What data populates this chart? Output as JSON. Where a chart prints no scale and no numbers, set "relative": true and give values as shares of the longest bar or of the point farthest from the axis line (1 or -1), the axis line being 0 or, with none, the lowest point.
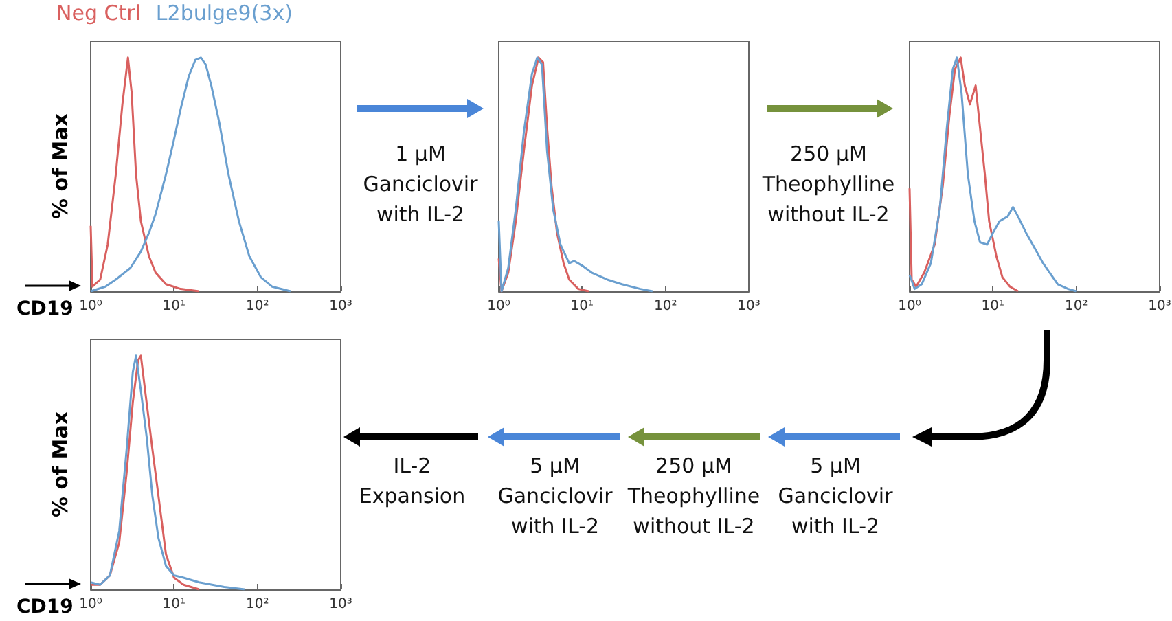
{
  "chart_data": [
    {
      "type": "line",
      "xlabel": "CD19",
      "ylabel": "% of Max",
      "relative": true,
      "log": "x",
      "legend": "top",
      "xlim": [
        1,
        1000
      ],
      "xticks": [
        {
          "value": 1,
          "label": "10⁰"
        },
        {
          "value": 10,
          "label": "10¹"
        },
        {
          "value": 100,
          "label": "10²"
        },
        {
          "value": 1000,
          "label": "10³"
        }
      ],
      "series": [
        {
          "name": "Neg Ctrl",
          "color": "#d9605f",
          "x": [
            1,
            1.05,
            1.3,
            1.6,
            2,
            2.4,
            2.8,
            3.1,
            3.5,
            4,
            5,
            6,
            8,
            12,
            20
          ],
          "values": [
            0.28,
            0.02,
            0.05,
            0.2,
            0.5,
            0.8,
            1,
            0.85,
            0.5,
            0.3,
            0.15,
            0.08,
            0.03,
            0.01,
            0
          ]
        },
        {
          "name": "L2bulge9(3x)",
          "color": "#6a9fcf",
          "x": [
            1,
            1.5,
            2,
            3,
            4,
            5,
            6,
            8,
            10,
            12,
            15,
            18,
            21,
            24,
            28,
            35,
            45,
            60,
            80,
            110,
            150,
            250
          ],
          "values": [
            0,
            0.02,
            0.05,
            0.1,
            0.17,
            0.25,
            0.33,
            0.5,
            0.65,
            0.78,
            0.92,
            0.99,
            1,
            0.97,
            0.88,
            0.72,
            0.5,
            0.3,
            0.15,
            0.06,
            0.02,
            0
          ]
        }
      ]
    },
    {
      "type": "line",
      "relative": true,
      "log": "x",
      "xlim": [
        1,
        1000
      ],
      "xticks": [
        {
          "value": 1,
          "label": "10⁰"
        },
        {
          "value": 10,
          "label": "10¹"
        },
        {
          "value": 100,
          "label": "10²"
        },
        {
          "value": 1000,
          "label": "10³"
        }
      ],
      "annotations": [
        "1 µM\nGanciclovir\nwith IL-2"
      ],
      "series": [
        {
          "color": "#d9605f",
          "x": [
            1,
            1.08,
            1.3,
            1.6,
            2,
            2.5,
            3,
            3.4,
            3.8,
            4.3,
            5,
            6,
            7,
            9,
            12
          ],
          "values": [
            0.14,
            0,
            0.08,
            0.3,
            0.6,
            0.88,
            1,
            0.98,
            0.7,
            0.45,
            0.25,
            0.12,
            0.05,
            0.01,
            0
          ]
        },
        {
          "color": "#6a9fcf",
          "x": [
            1,
            1.08,
            1.3,
            1.6,
            2,
            2.5,
            2.9,
            3.3,
            3.8,
            4.5,
            5.5,
            7,
            8,
            10,
            13,
            20,
            30,
            50,
            70
          ],
          "values": [
            0.3,
            0,
            0.1,
            0.35,
            0.68,
            0.93,
            1,
            0.97,
            0.6,
            0.35,
            0.2,
            0.12,
            0.13,
            0.11,
            0.08,
            0.05,
            0.03,
            0.01,
            0
          ]
        }
      ]
    },
    {
      "type": "line",
      "relative": true,
      "log": "x",
      "xlim": [
        1,
        1000
      ],
      "xticks": [
        {
          "value": 1,
          "label": "10⁰"
        },
        {
          "value": 10,
          "label": "10¹"
        },
        {
          "value": 100,
          "label": "10²"
        },
        {
          "value": 1000,
          "label": "10³"
        }
      ],
      "annotations": [
        "250 µM\nTheophylline\nwithout IL-2"
      ],
      "series": [
        {
          "color": "#d9605f",
          "x": [
            1,
            1.06,
            1.2,
            1.5,
            2,
            2.5,
            3,
            3.5,
            4.1,
            4.6,
            5.3,
            6.2,
            7,
            8,
            9,
            11,
            13,
            16,
            20
          ],
          "values": [
            0.44,
            0.05,
            0.02,
            0.08,
            0.2,
            0.45,
            0.75,
            0.95,
            1,
            0.88,
            0.8,
            0.88,
            0.7,
            0.5,
            0.3,
            0.15,
            0.06,
            0.02,
            0
          ]
        },
        {
          "color": "#6a9fcf",
          "x": [
            1,
            1.15,
            1.4,
            1.8,
            2.3,
            2.8,
            3.3,
            3.7,
            4.2,
            5,
            6,
            7,
            8.5,
            10,
            12,
            15,
            17.4,
            20,
            25,
            30,
            40,
            50,
            60,
            80,
            100
          ],
          "values": [
            0.07,
            0.01,
            0.03,
            0.12,
            0.35,
            0.7,
            0.95,
            1,
            0.85,
            0.5,
            0.3,
            0.21,
            0.2,
            0.25,
            0.3,
            0.32,
            0.36,
            0.32,
            0.25,
            0.2,
            0.12,
            0.07,
            0.03,
            0.01,
            0
          ]
        }
      ]
    },
    {
      "type": "line",
      "xlabel": "CD19",
      "ylabel": "% of Max",
      "relative": true,
      "log": "x",
      "xlim": [
        1,
        1000
      ],
      "xticks": [
        {
          "value": 1,
          "label": "10⁰"
        },
        {
          "value": 10,
          "label": "10¹"
        },
        {
          "value": 100,
          "label": "10²"
        },
        {
          "value": 1000,
          "label": "10³"
        }
      ],
      "annotations": [
        "IL-2\nExpansion",
        "5 µM\nGanciclovir\nwith IL-2",
        "250 µM\nTheophylline\nwithout IL-2",
        "5 µM\nGanciclovir\nwith IL-2"
      ],
      "series": [
        {
          "color": "#d9605f",
          "x": [
            1,
            1.3,
            1.7,
            2.2,
            2.7,
            3.2,
            3.7,
            4,
            4.5,
            5.5,
            6.5,
            8,
            10,
            13,
            20
          ],
          "values": [
            0.02,
            0.02,
            0.06,
            0.2,
            0.5,
            0.8,
            0.98,
            1,
            0.85,
            0.6,
            0.4,
            0.15,
            0.05,
            0.02,
            0
          ]
        },
        {
          "color": "#6a9fcf",
          "x": [
            1,
            1.3,
            1.7,
            2.2,
            2.7,
            3.2,
            3.5,
            4,
            4.7,
            5.5,
            6.5,
            8,
            10,
            13,
            20,
            40,
            70
          ],
          "values": [
            0.03,
            0.02,
            0.06,
            0.25,
            0.6,
            0.93,
            1,
            0.85,
            0.65,
            0.4,
            0.22,
            0.1,
            0.06,
            0.05,
            0.03,
            0.01,
            0
          ]
        }
      ]
    }
  ]
}
